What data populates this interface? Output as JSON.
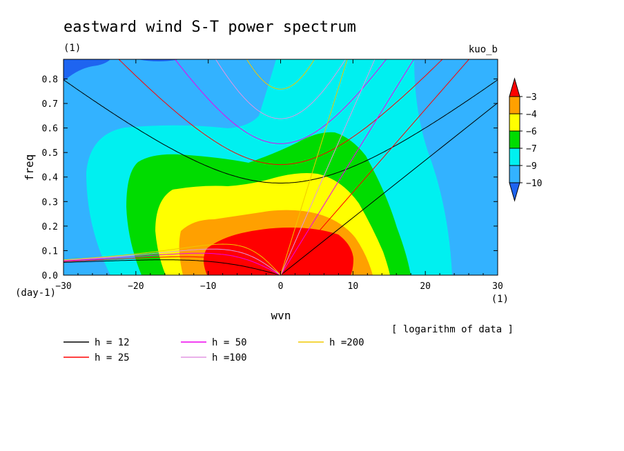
{
  "chart_data": {
    "type": "contour",
    "title": "eastward wind S-T power spectrum",
    "subtitle_left": "(1)",
    "subtitle_right": "kuo_b",
    "xlabel": "wvn",
    "ylabel": "freq",
    "x_unit": "(1)",
    "y_unit": "(day-1)",
    "xlim": [
      -30,
      30
    ],
    "ylim": [
      0,
      0.88
    ],
    "xticks": [
      -30,
      -20,
      -10,
      0,
      10,
      20,
      30
    ],
    "yticks": [
      0.0,
      0.1,
      0.2,
      0.3,
      0.4,
      0.5,
      0.6,
      0.7,
      0.8
    ],
    "note": "[ logarithm of data ]",
    "colorbar": {
      "levels": [
        -10,
        -9,
        -7,
        -6,
        -4,
        -3
      ],
      "labels": [
        "-10",
        "-9",
        "-7",
        "-6",
        "-4",
        "-3"
      ],
      "colors": [
        "#1e64f0",
        "#33b2ff",
        "#00f0f0",
        "#00dc00",
        "#ffff00",
        "#ffa000",
        "#ff0000"
      ]
    },
    "dispersion_curves": [
      {
        "name": "h = 12",
        "h": 12,
        "color": "#000000"
      },
      {
        "name": "h = 25",
        "h": 25,
        "color": "#ff0000"
      },
      {
        "name": "h = 50",
        "h": 50,
        "color": "#ee00ee"
      },
      {
        "name": "h =100",
        "h": 100,
        "color": "#e396e3"
      },
      {
        "name": "h =200",
        "h": 200,
        "color": "#f0c800"
      }
    ]
  }
}
